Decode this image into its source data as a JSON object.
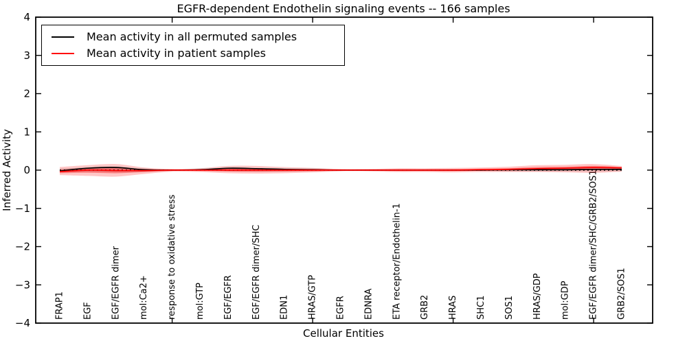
{
  "chart": {
    "title": "EGFR-dependent Endothelin signaling events -- 166 samples",
    "xlabel": "Cellular Entities",
    "ylabel": "Inferred Activity"
  },
  "legend": {
    "items": [
      {
        "label": "Mean activity in all permuted samples",
        "color": "#000000"
      },
      {
        "label": "Mean activity in patient samples",
        "color": "#ff0000"
      }
    ]
  },
  "chart_data": {
    "type": "line",
    "title": "EGFR-dependent Endothelin signaling events -- 166 samples",
    "xlabel": "Cellular Entities",
    "ylabel": "Inferred Activity",
    "ylim": [
      -4,
      4
    ],
    "yticks": [
      4,
      3,
      2,
      1,
      0,
      -1,
      -2,
      -3,
      -4
    ],
    "x_major_tick_indices": [
      4,
      9,
      14,
      19
    ],
    "zero_line": {
      "style": "dotted",
      "color": "#000000",
      "y": 0
    },
    "grid": false,
    "legend_position": "upper left",
    "categories": [
      "FRAP1",
      "EGF",
      "EGF/EGFR dimer",
      "mol:Ca2+",
      "response to oxidative stress",
      "mol:GTP",
      "EGF/EGFR",
      "EGF/EGFR dimer/SHC",
      "EDN1",
      "HRAS/GTP",
      "EGFR",
      "EDNRA",
      "ETA receptor/Endothelin-1",
      "GRB2",
      "HRAS",
      "SHC1",
      "SOS1",
      "HRAS/GDP",
      "mol:GDP",
      "EGF/EGFR dimer/SHC/GRB2/SOS1",
      "GRB2/SOS1"
    ],
    "series": [
      {
        "name": "Mean activity in all permuted samples",
        "role": "permuted_mean",
        "color": "#000000",
        "values": [
          -0.02,
          0.05,
          0.07,
          0.01,
          0.0,
          0.01,
          0.05,
          0.04,
          0.02,
          0.01,
          0.0,
          0.0,
          0.0,
          0.0,
          0.0,
          0.0,
          0.01,
          0.01,
          0.01,
          0.02,
          0.02
        ]
      },
      {
        "name": "Mean activity in patient samples",
        "role": "patient_mean",
        "color": "#ff0000",
        "values": [
          -0.04,
          0.0,
          -0.01,
          -0.01,
          0.0,
          0.0,
          0.0,
          0.0,
          0.0,
          0.0,
          0.0,
          0.0,
          0.0,
          0.0,
          0.0,
          0.01,
          0.02,
          0.04,
          0.05,
          0.07,
          0.06
        ]
      },
      {
        "name": "Permuted samples band upper",
        "role": "permuted_band_upper",
        "color": "#999999",
        "values": [
          0.04,
          0.07,
          0.09,
          0.04,
          0.02,
          0.02,
          0.06,
          0.05,
          0.03,
          0.03,
          0.02,
          0.02,
          0.02,
          0.02,
          0.02,
          0.02,
          0.03,
          0.03,
          0.03,
          0.04,
          0.04
        ]
      },
      {
        "name": "Permuted samples band lower",
        "role": "permuted_band_lower",
        "color": "#999999",
        "values": [
          -0.06,
          -0.05,
          -0.06,
          -0.05,
          -0.02,
          -0.02,
          -0.03,
          -0.04,
          -0.04,
          -0.03,
          -0.02,
          -0.02,
          -0.02,
          -0.02,
          -0.02,
          -0.02,
          -0.03,
          -0.03,
          -0.03,
          -0.03,
          -0.03
        ]
      },
      {
        "name": "Patient samples band upper",
        "role": "patient_band_upper",
        "color": "#ff0000",
        "values": [
          0.08,
          0.13,
          0.16,
          0.07,
          0.03,
          0.05,
          0.11,
          0.11,
          0.08,
          0.06,
          0.03,
          0.03,
          0.05,
          0.05,
          0.06,
          0.07,
          0.09,
          0.13,
          0.14,
          0.16,
          0.11
        ]
      },
      {
        "name": "Patient samples band lower",
        "role": "patient_band_lower",
        "color": "#ff0000",
        "values": [
          -0.13,
          -0.15,
          -0.17,
          -0.1,
          -0.04,
          -0.05,
          -0.08,
          -0.09,
          -0.08,
          -0.06,
          -0.03,
          -0.03,
          -0.05,
          -0.05,
          -0.06,
          -0.05,
          -0.05,
          -0.05,
          -0.06,
          -0.07,
          -0.04
        ]
      }
    ]
  }
}
